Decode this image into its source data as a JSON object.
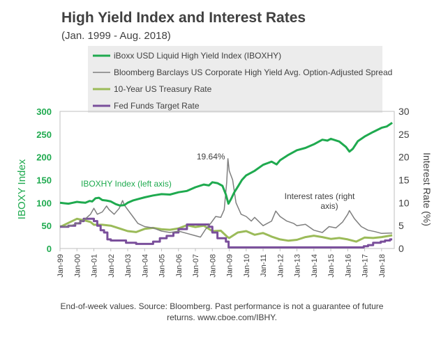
{
  "chart_data": {
    "type": "line",
    "title": "High Yield Index and Interest Rates",
    "subtitle": "(Jan. 1999 - Aug. 2018)",
    "ylabel_left": "IBOXY Index",
    "ylabel_right": "Interest Rate (%)",
    "ylim_left": [
      0,
      300
    ],
    "ylim_right": [
      0,
      30
    ],
    "yticks_left": [
      "0",
      "50",
      "100",
      "150",
      "200",
      "250",
      "300"
    ],
    "yticks_right": [
      "0",
      "5",
      "10",
      "15",
      "20",
      "25",
      "30"
    ],
    "xticks": [
      "Jan-99",
      "Jan-00",
      "Jan-01",
      "Jan-02",
      "Jan-03",
      "Jan-04",
      "Jan-05",
      "Jan-06",
      "Jan-07",
      "Jan-08",
      "Jan-09",
      "Jan-10",
      "Jan-11",
      "Jan-12",
      "Jan-13",
      "Jan-14",
      "Jan-15",
      "Jan-16",
      "Jan-17",
      "Jan-18"
    ],
    "grid": false,
    "legend_placement": "top",
    "colors": {
      "iboxhy": "#1faa4f",
      "spread": "#7f7f7f",
      "treasury": "#9bbb59",
      "fedfunds": "#7a4f9b",
      "axis_left": "#1faa4f",
      "legend_bg": "#ececec"
    },
    "series": [
      {
        "name": "iBoxx USD Liquid High Yield Index (IBOXHY)",
        "axis": "left",
        "x": [
          1999.0,
          1999.25,
          1999.5,
          1999.75,
          2000.0,
          2000.25,
          2000.5,
          2000.75,
          2000.9,
          2001.1,
          2001.3,
          2001.5,
          2001.75,
          2002.0,
          2002.3,
          2002.55,
          2002.8,
          2003.0,
          2003.3,
          2003.6,
          2004.0,
          2004.5,
          2005.0,
          2005.5,
          2006.0,
          2006.5,
          2007.0,
          2007.5,
          2007.8,
          2008.0,
          2008.3,
          2008.6,
          2008.8,
          2008.95,
          2009.1,
          2009.3,
          2009.5,
          2009.75,
          2010.0,
          2010.5,
          2011.0,
          2011.5,
          2011.8,
          2012.0,
          2012.5,
          2013.0,
          2013.5,
          2014.0,
          2014.5,
          2014.8,
          2015.0,
          2015.5,
          2015.9,
          2016.1,
          2016.3,
          2016.6,
          2017.0,
          2017.5,
          2018.0,
          2018.3,
          2018.63
        ],
        "values": [
          100,
          99,
          98,
          100,
          102,
          101,
          100,
          104,
          103,
          110,
          111,
          106,
          105,
          103,
          97,
          94,
          95,
          100,
          105,
          108,
          112,
          116,
          119,
          118,
          123,
          126,
          134,
          140,
          138,
          145,
          143,
          137,
          118,
          98,
          108,
          123,
          135,
          150,
          160,
          170,
          183,
          190,
          184,
          193,
          205,
          215,
          220,
          228,
          238,
          236,
          240,
          234,
          222,
          212,
          218,
          235,
          245,
          255,
          264,
          267,
          275
        ]
      },
      {
        "name": "Bloomberg Barclays US Corporate High Yield Avg. Option-Adjusted Spread",
        "axis": "right",
        "x": [
          1999.0,
          1999.3,
          1999.6,
          1999.9,
          2000.2,
          2000.5,
          2000.8,
          2001.0,
          2001.2,
          2001.5,
          2001.75,
          2001.9,
          2002.2,
          2002.5,
          2002.7,
          2002.8,
          2003.0,
          2003.3,
          2003.6,
          2004.0,
          2004.5,
          2005.0,
          2005.5,
          2006.0,
          2006.5,
          2007.0,
          2007.3,
          2007.6,
          2007.9,
          2008.2,
          2008.5,
          2008.7,
          2008.85,
          2008.92,
          2009.0,
          2009.2,
          2009.4,
          2009.7,
          2010.0,
          2010.3,
          2010.5,
          2011.0,
          2011.5,
          2011.75,
          2012.0,
          2012.4,
          2012.8,
          2013.0,
          2013.5,
          2014.0,
          2014.5,
          2014.9,
          2015.3,
          2015.7,
          2016.0,
          2016.1,
          2016.4,
          2016.8,
          2017.2,
          2017.6,
          2018.0,
          2018.63
        ],
        "values": [
          5.0,
          4.8,
          5.0,
          5.3,
          5.8,
          6.5,
          7.5,
          8.8,
          7.5,
          8.0,
          9.3,
          8.5,
          7.5,
          8.8,
          10.5,
          9.5,
          8.5,
          7.0,
          5.5,
          4.8,
          4.5,
          3.8,
          3.5,
          3.8,
          3.3,
          2.8,
          2.5,
          4.2,
          5.5,
          7.0,
          6.8,
          8.5,
          14.5,
          19.64,
          17.0,
          15.0,
          10.0,
          7.5,
          7.0,
          6.0,
          6.8,
          5.0,
          6.0,
          8.2,
          7.0,
          6.0,
          5.5,
          5.0,
          5.3,
          4.0,
          3.5,
          4.8,
          4.5,
          5.8,
          7.5,
          8.3,
          6.5,
          4.8,
          4.0,
          3.7,
          3.3,
          3.4
        ]
      },
      {
        "name": "10-Year US Treasury Rate",
        "axis": "right",
        "x": [
          1999.0,
          1999.5,
          2000.0,
          2000.4,
          2000.8,
          2001.0,
          2001.5,
          2002.0,
          2002.5,
          2003.0,
          2003.5,
          2004.0,
          2004.5,
          2005.0,
          2005.5,
          2006.0,
          2006.5,
          2007.0,
          2007.5,
          2008.0,
          2008.5,
          2008.9,
          2009.0,
          2009.5,
          2010.0,
          2010.5,
          2011.0,
          2011.5,
          2012.0,
          2012.5,
          2013.0,
          2013.5,
          2014.0,
          2014.5,
          2015.0,
          2015.5,
          2016.0,
          2016.5,
          2017.0,
          2017.5,
          2018.0,
          2018.63
        ],
        "values": [
          4.7,
          5.6,
          6.5,
          6.2,
          5.8,
          5.2,
          5.2,
          5.0,
          4.4,
          3.8,
          3.6,
          4.3,
          4.5,
          4.2,
          4.1,
          4.4,
          5.1,
          4.7,
          5.0,
          3.8,
          3.9,
          2.5,
          2.3,
          3.5,
          3.8,
          3.0,
          3.4,
          2.6,
          2.0,
          1.7,
          1.9,
          2.5,
          2.8,
          2.5,
          2.1,
          2.3,
          2.0,
          1.5,
          2.4,
          2.3,
          2.5,
          2.9
        ]
      },
      {
        "name": "Fed Funds Target Rate",
        "axis": "right",
        "x": [
          1999.0,
          1999.5,
          1999.9,
          2000.0,
          2000.2,
          2000.4,
          2000.9,
          2001.0,
          2001.2,
          2001.4,
          2001.6,
          2001.8,
          2002.0,
          2002.9,
          2003.5,
          2004.5,
          2004.9,
          2005.3,
          2005.7,
          2006.0,
          2006.5,
          2007.6,
          2007.8,
          2008.0,
          2008.3,
          2008.8,
          2008.96,
          2009.0,
          2015.95,
          2016.95,
          2017.2,
          2017.5,
          2017.95,
          2018.2,
          2018.5,
          2018.63
        ],
        "values": [
          4.75,
          5.0,
          5.5,
          5.5,
          6.0,
          6.5,
          6.5,
          6.0,
          5.0,
          4.0,
          3.5,
          2.0,
          1.75,
          1.25,
          1.0,
          1.5,
          2.25,
          2.75,
          3.5,
          4.25,
          5.25,
          5.25,
          4.75,
          3.5,
          2.25,
          1.5,
          0.25,
          0.25,
          0.25,
          0.5,
          0.75,
          1.25,
          1.5,
          1.75,
          2.0,
          2.0
        ]
      }
    ],
    "annotations": {
      "peak_label": "19.64%",
      "iboxhy_label": "IBOXHY Index (left axis)",
      "rates_label_line1": "Interest rates (right",
      "rates_label_line2": "axis)"
    },
    "footnote_line1": "End-of-week  values. Source: Bloomberg.   Past performance is not a guarantee of future",
    "footnote_line2": "returns. www.cboe.com/IBHY."
  }
}
